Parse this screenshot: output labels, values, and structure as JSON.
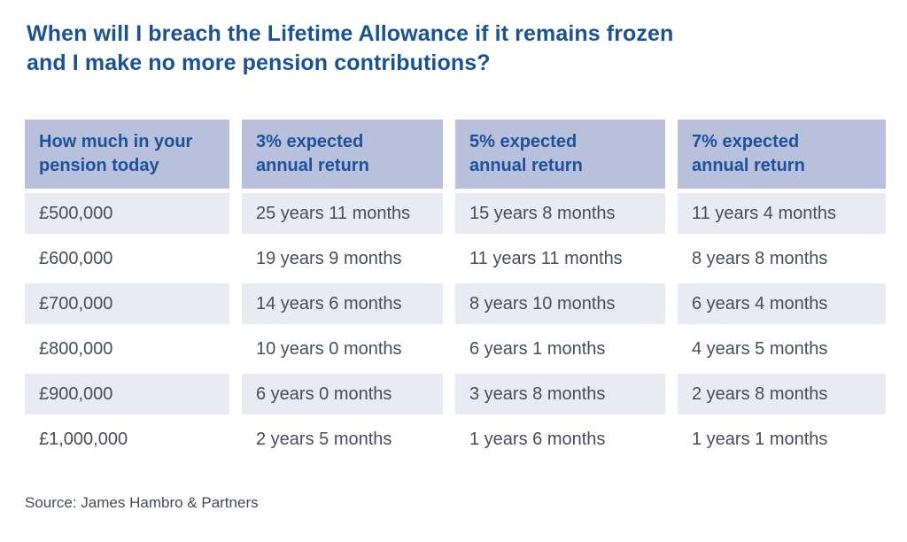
{
  "colors": {
    "title_blue": "#1A5392",
    "header_text_blue": "#1C529B",
    "header_bg": "#B9C0DB",
    "row_alt_bg": "#E9EAF4",
    "row_bg": "#FFFFFF",
    "body_text": "#474D59",
    "source_text": "#454B55",
    "page_bg": "#FFFFFF"
  },
  "chart_data": {
    "type": "table",
    "title": "When will I breach the Lifetime Allowance if it remains frozen and I make no more pension contributions?",
    "title_lines": [
      "When will I breach the Lifetime Allowance if it remains frozen",
      "and I make no more pension contributions?"
    ],
    "columns": [
      "How much in your pension today",
      "3% expected annual return",
      "5% expected annual return",
      "7% expected annual return"
    ],
    "columns_lines": [
      [
        "How much in your",
        "pension today"
      ],
      [
        "3% expected",
        "annual return"
      ],
      [
        "5% expected",
        "annual return"
      ],
      [
        "7% expected",
        "annual return"
      ]
    ],
    "rows": [
      [
        "£500,000",
        "25 years 11 months",
        "15 years 8 months",
        "11 years 4 months"
      ],
      [
        "£600,000",
        "19 years 9 months",
        "11 years 11 months",
        "8 years 8 months"
      ],
      [
        "£700,000",
        "14 years 6 months",
        "8 years 10 months",
        "6 years 4 months"
      ],
      [
        "£800,000",
        "10 years 0 months",
        "6 years 1 months",
        "4 years 5 months"
      ],
      [
        "£900,000",
        "6 years 0 months",
        "3 years 8 months",
        "2 years 8 months"
      ],
      [
        "£1,000,000",
        "2 years 5 months",
        "1 years 6 months",
        "1 years 1 months"
      ]
    ],
    "source": "Source: James Hambro & Partners",
    "legend_position": "none",
    "grid": false
  }
}
